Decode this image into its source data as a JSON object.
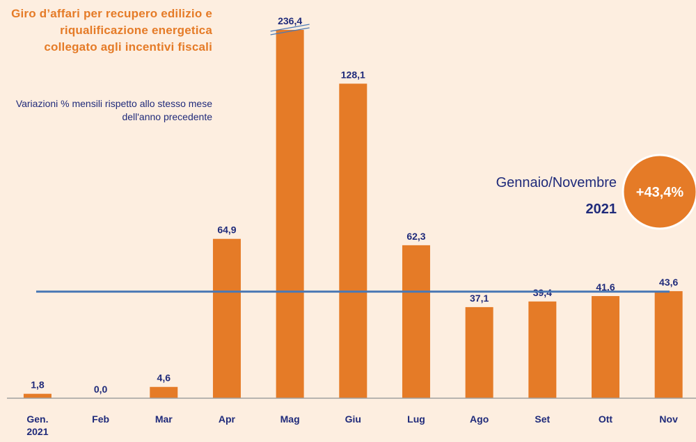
{
  "chart_data": {
    "type": "bar",
    "title": "Giro d’affari per recupero edilizio e riqualificazione energetica collegato agli incentivi fiscali",
    "subtitle": "Variazioni % mensili rispetto allo stesso mese dell'anno precedente",
    "categories": [
      "Gen. 2021",
      "Feb",
      "Mar",
      "Apr",
      "Mag",
      "Giu",
      "Lug",
      "Ago",
      "Set",
      "Ott",
      "Nov"
    ],
    "values": [
      1.8,
      0.0,
      4.6,
      64.9,
      236.4,
      128.1,
      62.3,
      37.1,
      39.4,
      41.6,
      43.6
    ],
    "value_labels": [
      "1,8",
      "0,0",
      "4,6",
      "64,9",
      "236,4",
      "128,1",
      "62,3",
      "37,1",
      "39,4",
      "41,6",
      "43,6"
    ],
    "color": "#e57b27",
    "ylim": [
      0,
      150
    ],
    "reference_line": {
      "value": 43.4,
      "color": "#4a78b5"
    },
    "annotation": {
      "period": "Gennaio/Novembre",
      "year": "2021",
      "value": 43.4,
      "label": "+43,4%"
    }
  }
}
